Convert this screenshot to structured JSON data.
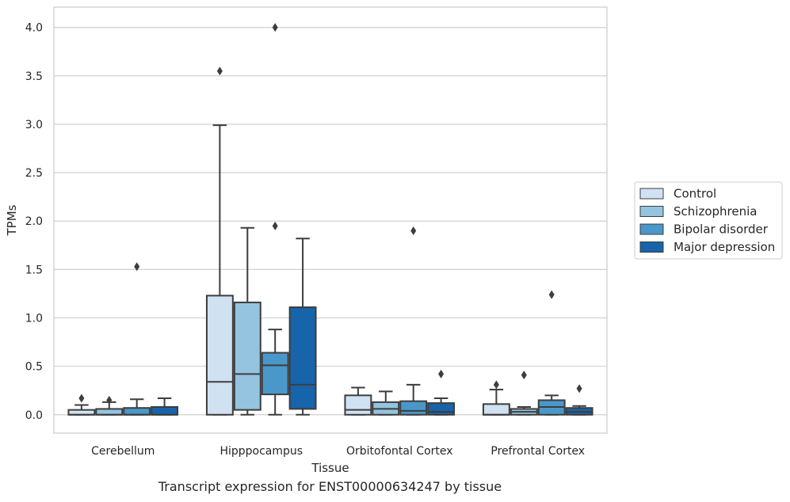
{
  "caption": "Transcript expression for ENST00000634247 by tissue",
  "chart_data": {
    "type": "boxplot",
    "xlabel": "Tissue",
    "ylabel": "TPMs",
    "ylim": [
      -0.19,
      4.21
    ],
    "yticks": [
      0.0,
      0.5,
      1.0,
      1.5,
      2.0,
      2.5,
      3.0,
      3.5,
      4.0
    ],
    "ytick_labels": [
      "0.0",
      "0.5",
      "1.0",
      "1.5",
      "2.0",
      "2.5",
      "3.0",
      "3.5",
      "4.0"
    ],
    "grid": "horizontal",
    "legend_position": "right",
    "categories": [
      "Cerebellum",
      "Hipppocampus",
      "Orbitofontal Cortex",
      "Prefrontal Cortex"
    ],
    "series": [
      {
        "name": "Control",
        "color": "#d0e1f2",
        "boxes": [
          {
            "min": 0.0,
            "q1": 0.0,
            "median": 0.0,
            "q3": 0.05,
            "max": 0.1,
            "outliers": [
              0.17
            ]
          },
          {
            "min": 0.0,
            "q1": 0.0,
            "median": 0.34,
            "q3": 1.23,
            "max": 2.99,
            "outliers": [
              3.55
            ]
          },
          {
            "min": 0.0,
            "q1": 0.0,
            "median": 0.05,
            "q3": 0.2,
            "max": 0.28,
            "outliers": []
          },
          {
            "min": 0.0,
            "q1": 0.0,
            "median": 0.0,
            "q3": 0.11,
            "max": 0.26,
            "outliers": [
              0.31
            ]
          }
        ]
      },
      {
        "name": "Schizophrenia",
        "color": "#94c4df",
        "boxes": [
          {
            "min": 0.0,
            "q1": 0.0,
            "median": 0.0,
            "q3": 0.06,
            "max": 0.13,
            "outliers": [
              0.15
            ]
          },
          {
            "min": 0.0,
            "q1": 0.05,
            "median": 0.42,
            "q3": 1.16,
            "max": 1.93,
            "outliers": []
          },
          {
            "min": 0.0,
            "q1": 0.0,
            "median": 0.06,
            "q3": 0.13,
            "max": 0.24,
            "outliers": []
          },
          {
            "min": 0.0,
            "q1": 0.0,
            "median": 0.03,
            "q3": 0.06,
            "max": 0.08,
            "outliers": [
              0.41
            ]
          }
        ]
      },
      {
        "name": "Bipolar disorder",
        "color": "#4a98c9",
        "boxes": [
          {
            "min": 0.0,
            "q1": 0.0,
            "median": 0.0,
            "q3": 0.07,
            "max": 0.16,
            "outliers": [
              1.53
            ]
          },
          {
            "min": 0.0,
            "q1": 0.21,
            "median": 0.51,
            "q3": 0.64,
            "max": 0.88,
            "outliers": [
              1.95,
              4.0
            ]
          },
          {
            "min": 0.0,
            "q1": 0.0,
            "median": 0.04,
            "q3": 0.14,
            "max": 0.31,
            "outliers": [
              1.9
            ]
          },
          {
            "min": 0.0,
            "q1": 0.0,
            "median": 0.08,
            "q3": 0.15,
            "max": 0.2,
            "outliers": [
              1.24
            ]
          }
        ]
      },
      {
        "name": "Major depression",
        "color": "#1764ab",
        "boxes": [
          {
            "min": 0.0,
            "q1": 0.0,
            "median": 0.0,
            "q3": 0.08,
            "max": 0.17,
            "outliers": []
          },
          {
            "min": 0.0,
            "q1": 0.06,
            "median": 0.31,
            "q3": 1.11,
            "max": 1.82,
            "outliers": []
          },
          {
            "min": 0.0,
            "q1": 0.0,
            "median": 0.03,
            "q3": 0.12,
            "max": 0.17,
            "outliers": [
              0.42
            ]
          },
          {
            "min": 0.0,
            "q1": 0.0,
            "median": 0.03,
            "q3": 0.07,
            "max": 0.09,
            "outliers": [
              0.27
            ]
          }
        ]
      }
    ]
  }
}
